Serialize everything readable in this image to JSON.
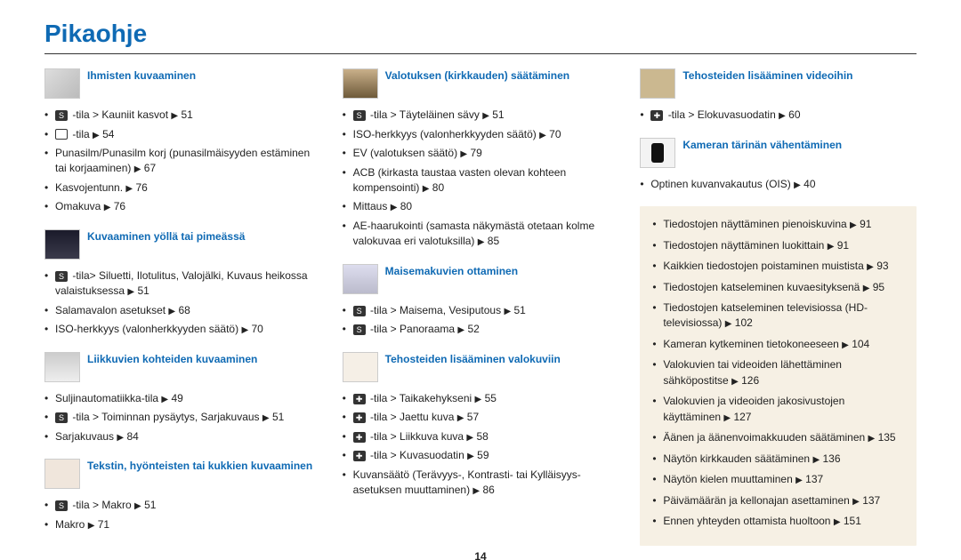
{
  "title": "Pikaohje",
  "page_number": "14",
  "colors": {
    "heading_blue": "#0f6ab4",
    "text": "#222222",
    "rule": "#333333",
    "box_bg": "#f6f0e4"
  },
  "triangle": "▶",
  "columns": [
    {
      "sections": [
        {
          "title": "Ihmisten kuvaaminen",
          "thumb": "face",
          "items": [
            {
              "prefix_mode": "S",
              "text": "-tila > Kauniit kasvot",
              "page": "51"
            },
            {
              "prefix_mode": "light",
              "text": "-tila",
              "page": "54"
            },
            {
              "text": "Punasilm/Punasilm korj (punasilmäisyyden estäminen tai korjaaminen)",
              "page": "67"
            },
            {
              "text": "Kasvojentunn.",
              "page": "76"
            },
            {
              "text": "Omakuva",
              "page": "76"
            }
          ]
        },
        {
          "title": "Kuvaaminen yöllä tai pimeässä",
          "thumb": "night",
          "items": [
            {
              "prefix_mode": "S",
              "text": "-tila> Siluetti, Ilotulitus, Valojälki, Kuvaus heikossa valaistuksessa",
              "page": "51"
            },
            {
              "text": "Salamavalon asetukset",
              "page": "68"
            },
            {
              "text": "ISO-herkkyys (valonherkkyyden säätö)",
              "page": "70"
            }
          ]
        },
        {
          "title": "Liikkuvien kohteiden kuvaaminen",
          "thumb": "sport",
          "items": [
            {
              "text": "Suljinautomatiikka-tila",
              "page": "49"
            },
            {
              "prefix_mode": "S",
              "text": "-tila > Toiminnan pysäytys, Sarjakuvaus",
              "page": "51"
            },
            {
              "text": "Sarjakuvaus",
              "page": "84"
            }
          ]
        },
        {
          "title": "Tekstin, hyönteisten tai kukkien kuvaaminen",
          "thumb": "flower",
          "items": [
            {
              "prefix_mode": "S",
              "text": "-tila > Makro",
              "page": "51"
            },
            {
              "text": "Makro",
              "page": "71"
            }
          ]
        }
      ]
    },
    {
      "sections": [
        {
          "title": "Valotuksen (kirkkauden) säätäminen",
          "thumb": "exposure",
          "items": [
            {
              "prefix_mode": "S",
              "text": "-tila > Täyteläinen sävy",
              "page": "51"
            },
            {
              "text": "ISO-herkkyys (valonherkkyyden säätö)",
              "page": "70"
            },
            {
              "text": "EV (valotuksen säätö)",
              "page": "79"
            },
            {
              "text": "ACB (kirkasta taustaa vasten olevan kohteen kompensointi)",
              "page": "80"
            },
            {
              "text": "Mittaus",
              "page": "80"
            },
            {
              "text": "AE-haarukointi (samasta näkymästä otetaan kolme valokuvaa eri valotuksilla)",
              "page": "85"
            }
          ]
        },
        {
          "title": "Maisemakuvien ottaminen",
          "thumb": "landscape",
          "items": [
            {
              "prefix_mode": "S",
              "text": "-tila > Maisema, Vesiputous",
              "page": "51"
            },
            {
              "prefix_mode": "S",
              "text": "-tila > Panoraama",
              "page": "52"
            }
          ]
        },
        {
          "title": "Tehosteiden lisääminen valokuviin",
          "thumb": "vase",
          "items": [
            {
              "prefix_mode": "plus",
              "text": "-tila > Taikakehykseni",
              "page": "55"
            },
            {
              "prefix_mode": "plus",
              "text": "-tila > Jaettu kuva",
              "page": "57"
            },
            {
              "prefix_mode": "plus",
              "text": "-tila > Liikkuva kuva",
              "page": "58"
            },
            {
              "prefix_mode": "plus",
              "text": "-tila > Kuvasuodatin",
              "page": "59"
            },
            {
              "text": "Kuvansäätö (Terävyys-, Kontrasti- tai Kylläisyys-asetuksen muuttaminen)",
              "page": "86"
            }
          ]
        }
      ]
    },
    {
      "sections": [
        {
          "title": "Tehosteiden lisääminen videoihin",
          "thumb": "video",
          "items": [
            {
              "prefix_mode": "plus",
              "text": "-tila > Elokuvasuodatin",
              "page": "60"
            }
          ]
        },
        {
          "title": "Kameran tärinän vähentäminen",
          "thumb": "shake",
          "items": [
            {
              "text": "Optinen kuvanvakautus (OIS)",
              "page": "40"
            }
          ]
        }
      ],
      "box_items": [
        {
          "text": "Tiedostojen näyttäminen pienoiskuvina",
          "page": "91"
        },
        {
          "text": "Tiedostojen näyttäminen luokittain",
          "page": "91"
        },
        {
          "text": "Kaikkien tiedostojen poistaminen muistista",
          "page": "93"
        },
        {
          "text": "Tiedostojen katseleminen kuvaesityksenä",
          "page": "95"
        },
        {
          "text": "Tiedostojen katseleminen televisiossa (HD-televisiossa)",
          "page": "102"
        },
        {
          "text": "Kameran kytkeminen tietokoneeseen",
          "page": "104"
        },
        {
          "text": "Valokuvien tai videoiden lähettäminen sähköpostitse",
          "page": "126"
        },
        {
          "text": "Valokuvien ja videoiden jakosivustojen käyttäminen",
          "page": "127"
        },
        {
          "text": "Äänen ja äänenvoimakkuuden säätäminen",
          "page": "135"
        },
        {
          "text": "Näytön kirkkauden säätäminen",
          "page": "136"
        },
        {
          "text": "Näytön kielen muuttaminen",
          "page": "137"
        },
        {
          "text": "Päivämäärän ja kellonajan asettaminen",
          "page": "137"
        },
        {
          "text": "Ennen yhteyden ottamista huoltoon",
          "page": "151"
        }
      ]
    }
  ]
}
